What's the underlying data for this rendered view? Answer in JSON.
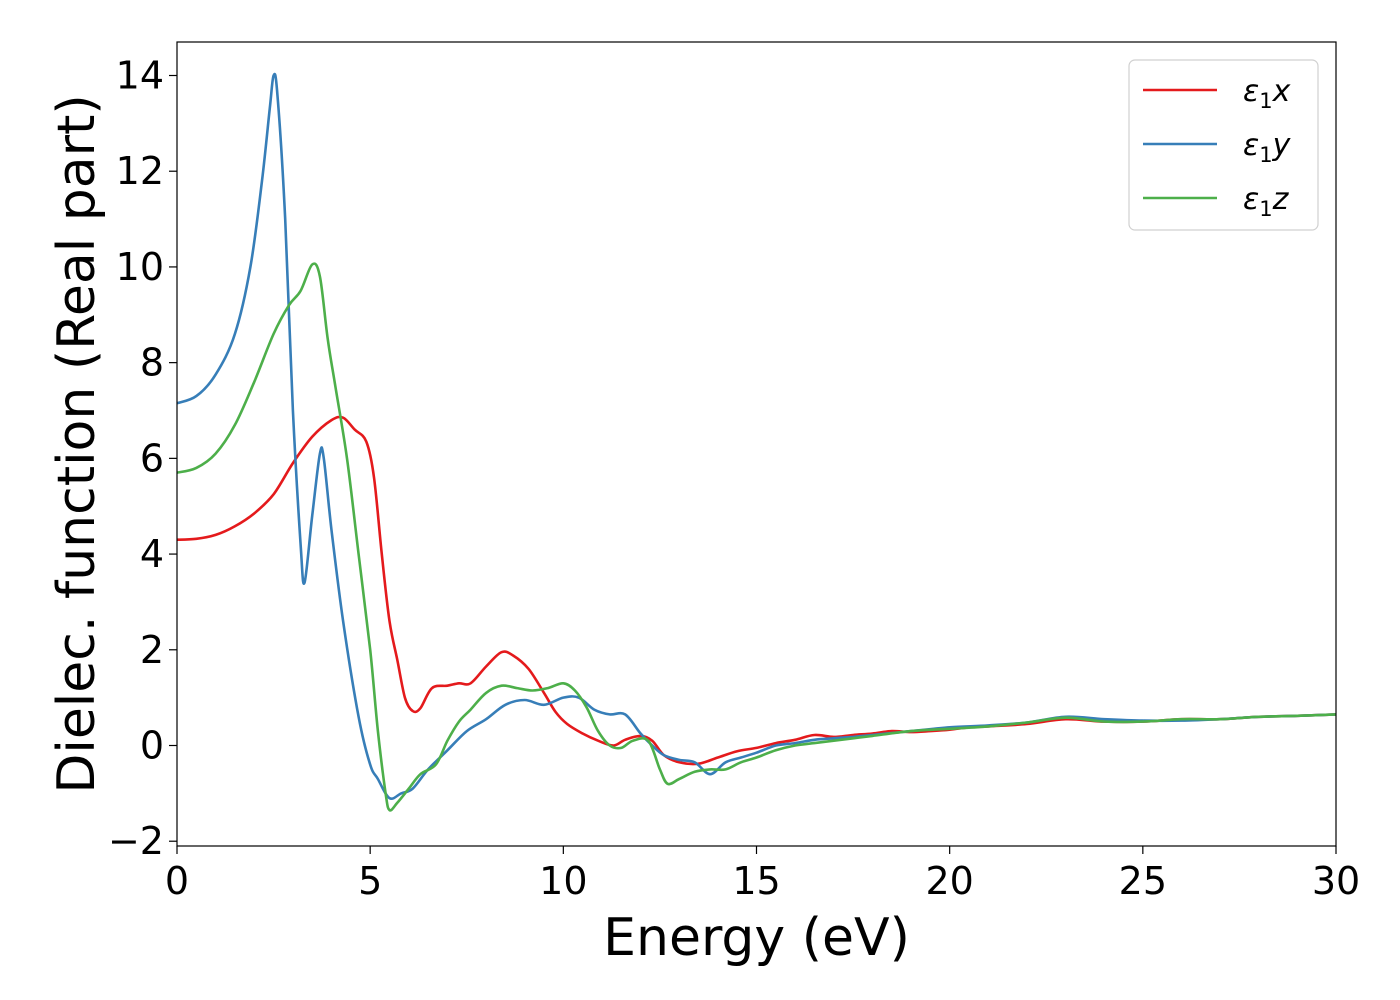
{
  "chart_data": {
    "type": "line",
    "title": "",
    "xlabel": "Energy (eV)",
    "ylabel": "Dielec. function (Real part)",
    "xlim": [
      0,
      30
    ],
    "ylim": [
      -2.1,
      14.7
    ],
    "xticks": [
      0,
      5,
      10,
      15,
      20,
      25,
      30
    ],
    "xtick_labels": [
      "0",
      "5",
      "10",
      "15",
      "20",
      "25",
      "30"
    ],
    "yticks": [
      -2,
      0,
      2,
      4,
      6,
      8,
      10,
      12,
      14
    ],
    "ytick_labels": [
      "−2",
      "0",
      "2",
      "4",
      "6",
      "8",
      "10",
      "12",
      "14"
    ],
    "grid": false,
    "legend_position": "top-right",
    "series": [
      {
        "name_symbol": "ε",
        "name_sub": "1",
        "name_suffix": "x",
        "color": "#e41a1c",
        "points": [
          [
            0,
            4.3
          ],
          [
            0.5,
            4.32
          ],
          [
            1,
            4.4
          ],
          [
            1.5,
            4.58
          ],
          [
            2,
            4.85
          ],
          [
            2.5,
            5.25
          ],
          [
            3,
            5.9
          ],
          [
            3.5,
            6.45
          ],
          [
            4,
            6.8
          ],
          [
            4.3,
            6.85
          ],
          [
            4.6,
            6.6
          ],
          [
            4.9,
            6.35
          ],
          [
            5.1,
            5.6
          ],
          [
            5.3,
            4.0
          ],
          [
            5.5,
            2.6
          ],
          [
            5.7,
            1.8
          ],
          [
            5.9,
            1.0
          ],
          [
            6.1,
            0.72
          ],
          [
            6.3,
            0.78
          ],
          [
            6.6,
            1.2
          ],
          [
            7.0,
            1.25
          ],
          [
            7.3,
            1.3
          ],
          [
            7.6,
            1.3
          ],
          [
            8.0,
            1.65
          ],
          [
            8.4,
            1.95
          ],
          [
            8.7,
            1.88
          ],
          [
            9.1,
            1.6
          ],
          [
            9.5,
            1.1
          ],
          [
            9.8,
            0.7
          ],
          [
            10.1,
            0.45
          ],
          [
            10.5,
            0.25
          ],
          [
            10.9,
            0.1
          ],
          [
            11.3,
            0.0
          ],
          [
            11.6,
            0.12
          ],
          [
            12.0,
            0.2
          ],
          [
            12.3,
            0.1
          ],
          [
            12.6,
            -0.2
          ],
          [
            13.0,
            -0.35
          ],
          [
            13.5,
            -0.38
          ],
          [
            14.0,
            -0.25
          ],
          [
            14.5,
            -0.12
          ],
          [
            15.0,
            -0.05
          ],
          [
            15.5,
            0.05
          ],
          [
            16.0,
            0.12
          ],
          [
            16.5,
            0.22
          ],
          [
            17.0,
            0.18
          ],
          [
            17.5,
            0.22
          ],
          [
            18.0,
            0.25
          ],
          [
            18.5,
            0.3
          ],
          [
            19.0,
            0.28
          ],
          [
            19.5,
            0.3
          ],
          [
            20.0,
            0.33
          ],
          [
            20.5,
            0.38
          ],
          [
            21.0,
            0.4
          ],
          [
            22.0,
            0.45
          ],
          [
            23.0,
            0.55
          ],
          [
            24.0,
            0.5
          ],
          [
            25.0,
            0.5
          ],
          [
            26.0,
            0.55
          ],
          [
            27.0,
            0.55
          ],
          [
            28.0,
            0.6
          ],
          [
            29.0,
            0.62
          ],
          [
            30.0,
            0.65
          ]
        ]
      },
      {
        "name_symbol": "ε",
        "name_sub": "1",
        "name_suffix": "y",
        "color": "#377eb8",
        "points": [
          [
            0,
            7.15
          ],
          [
            0.5,
            7.3
          ],
          [
            1,
            7.75
          ],
          [
            1.5,
            8.6
          ],
          [
            1.9,
            10.0
          ],
          [
            2.2,
            11.8
          ],
          [
            2.4,
            13.3
          ],
          [
            2.5,
            14.0
          ],
          [
            2.6,
            13.6
          ],
          [
            2.8,
            11.0
          ],
          [
            3.0,
            7.0
          ],
          [
            3.2,
            4.2
          ],
          [
            3.3,
            3.4
          ],
          [
            3.5,
            4.8
          ],
          [
            3.7,
            6.1
          ],
          [
            3.8,
            6.0
          ],
          [
            4.0,
            4.5
          ],
          [
            4.3,
            2.6
          ],
          [
            4.7,
            0.6
          ],
          [
            5.0,
            -0.4
          ],
          [
            5.2,
            -0.7
          ],
          [
            5.5,
            -1.1
          ],
          [
            5.8,
            -1.0
          ],
          [
            6.1,
            -0.9
          ],
          [
            6.5,
            -0.5
          ],
          [
            7.0,
            -0.1
          ],
          [
            7.5,
            0.3
          ],
          [
            8.0,
            0.55
          ],
          [
            8.5,
            0.85
          ],
          [
            9.0,
            0.95
          ],
          [
            9.5,
            0.85
          ],
          [
            10.0,
            1.0
          ],
          [
            10.4,
            1.0
          ],
          [
            10.8,
            0.75
          ],
          [
            11.2,
            0.65
          ],
          [
            11.6,
            0.65
          ],
          [
            12.0,
            0.25
          ],
          [
            12.3,
            0.0
          ],
          [
            12.6,
            -0.2
          ],
          [
            13.0,
            -0.3
          ],
          [
            13.4,
            -0.35
          ],
          [
            13.8,
            -0.6
          ],
          [
            14.2,
            -0.35
          ],
          [
            14.6,
            -0.25
          ],
          [
            15.0,
            -0.15
          ],
          [
            15.5,
            0.0
          ],
          [
            16.0,
            0.05
          ],
          [
            16.5,
            0.12
          ],
          [
            17.0,
            0.15
          ],
          [
            17.5,
            0.18
          ],
          [
            18.0,
            0.22
          ],
          [
            19.0,
            0.3
          ],
          [
            20.0,
            0.38
          ],
          [
            21.0,
            0.42
          ],
          [
            22.0,
            0.48
          ],
          [
            23.0,
            0.6
          ],
          [
            24.0,
            0.55
          ],
          [
            25.0,
            0.52
          ],
          [
            26.0,
            0.52
          ],
          [
            27.0,
            0.55
          ],
          [
            28.0,
            0.6
          ],
          [
            29.0,
            0.62
          ],
          [
            30.0,
            0.65
          ]
        ]
      },
      {
        "name_symbol": "ε",
        "name_sub": "1",
        "name_suffix": "z",
        "color": "#4daf4a",
        "points": [
          [
            0,
            5.7
          ],
          [
            0.5,
            5.8
          ],
          [
            1,
            6.1
          ],
          [
            1.5,
            6.7
          ],
          [
            2.0,
            7.6
          ],
          [
            2.5,
            8.6
          ],
          [
            2.9,
            9.2
          ],
          [
            3.2,
            9.5
          ],
          [
            3.5,
            10.05
          ],
          [
            3.7,
            9.8
          ],
          [
            3.9,
            8.5
          ],
          [
            4.1,
            7.5
          ],
          [
            4.4,
            6.0
          ],
          [
            4.7,
            4.0
          ],
          [
            5.0,
            2.0
          ],
          [
            5.2,
            0.3
          ],
          [
            5.4,
            -1.0
          ],
          [
            5.5,
            -1.35
          ],
          [
            5.7,
            -1.2
          ],
          [
            6.0,
            -0.9
          ],
          [
            6.3,
            -0.6
          ],
          [
            6.7,
            -0.4
          ],
          [
            7.0,
            0.1
          ],
          [
            7.3,
            0.5
          ],
          [
            7.6,
            0.75
          ],
          [
            8.0,
            1.1
          ],
          [
            8.4,
            1.25
          ],
          [
            8.8,
            1.2
          ],
          [
            9.2,
            1.15
          ],
          [
            9.6,
            1.2
          ],
          [
            10.0,
            1.3
          ],
          [
            10.3,
            1.15
          ],
          [
            10.6,
            0.8
          ],
          [
            10.9,
            0.3
          ],
          [
            11.2,
            0.0
          ],
          [
            11.5,
            -0.05
          ],
          [
            11.8,
            0.1
          ],
          [
            12.2,
            0.1
          ],
          [
            12.5,
            -0.5
          ],
          [
            12.7,
            -0.8
          ],
          [
            13.0,
            -0.7
          ],
          [
            13.4,
            -0.55
          ],
          [
            13.8,
            -0.5
          ],
          [
            14.2,
            -0.5
          ],
          [
            14.6,
            -0.35
          ],
          [
            15.0,
            -0.25
          ],
          [
            15.5,
            -0.1
          ],
          [
            16.0,
            0.0
          ],
          [
            16.5,
            0.05
          ],
          [
            17.0,
            0.1
          ],
          [
            17.5,
            0.15
          ],
          [
            18.0,
            0.2
          ],
          [
            19.0,
            0.3
          ],
          [
            20.0,
            0.35
          ],
          [
            21.0,
            0.4
          ],
          [
            22.0,
            0.48
          ],
          [
            23.0,
            0.58
          ],
          [
            24.0,
            0.5
          ],
          [
            25.0,
            0.5
          ],
          [
            26.0,
            0.55
          ],
          [
            27.0,
            0.55
          ],
          [
            28.0,
            0.6
          ],
          [
            29.0,
            0.62
          ],
          [
            30.0,
            0.65
          ]
        ]
      }
    ]
  }
}
